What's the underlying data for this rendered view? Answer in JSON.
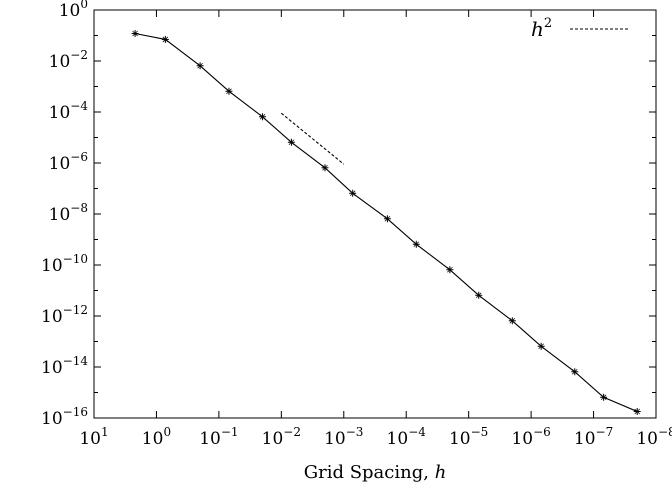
{
  "chart_data": {
    "type": "line",
    "xlabel": "Grid Spacing, h",
    "xlabel_parts": {
      "text": "Grid Spacing, ",
      "var": "h"
    },
    "x_scale": "log",
    "y_scale": "log",
    "x_reversed": true,
    "xlim": [
      10,
      1e-08
    ],
    "ylim": [
      1e-16,
      1
    ],
    "x_ticks": [
      {
        "value": 10,
        "base": "10",
        "exp": "1"
      },
      {
        "value": 1,
        "base": "10",
        "exp": "0"
      },
      {
        "value": 0.1,
        "base": "10",
        "exp": "−1"
      },
      {
        "value": 0.01,
        "base": "10",
        "exp": "−2"
      },
      {
        "value": 0.001,
        "base": "10",
        "exp": "−3"
      },
      {
        "value": 0.0001,
        "base": "10",
        "exp": "−4"
      },
      {
        "value": 1e-05,
        "base": "10",
        "exp": "−5"
      },
      {
        "value": 1e-06,
        "base": "10",
        "exp": "−6"
      },
      {
        "value": 1e-07,
        "base": "10",
        "exp": "−7"
      },
      {
        "value": 1e-08,
        "base": "10",
        "exp": "−8"
      }
    ],
    "y_ticks": [
      {
        "value": 1,
        "base": "10",
        "exp": "0"
      },
      {
        "value": 0.01,
        "base": "10",
        "exp": "−2"
      },
      {
        "value": 0.0001,
        "base": "10",
        "exp": "−4"
      },
      {
        "value": 1e-06,
        "base": "10",
        "exp": "−6"
      },
      {
        "value": 1e-08,
        "base": "10",
        "exp": "−8"
      },
      {
        "value": 1e-10,
        "base": "10",
        "exp": "−10"
      },
      {
        "value": 1e-12,
        "base": "10",
        "exp": "−12"
      },
      {
        "value": 1e-14,
        "base": "10",
        "exp": "−14"
      },
      {
        "value": 1e-16,
        "base": "10",
        "exp": "−16"
      }
    ],
    "series": [
      {
        "marker": "plus",
        "color": "#000000",
        "points": [
          {
            "x": 2.2,
            "y": 0.12
          },
          {
            "x": 0.72,
            "y": 0.07
          },
          {
            "x": 0.2,
            "y": 0.0065
          },
          {
            "x": 0.069,
            "y": 0.00065
          },
          {
            "x": 0.02,
            "y": 6.5e-05
          },
          {
            "x": 0.0069,
            "y": 6.5e-06
          },
          {
            "x": 0.002,
            "y": 6.5e-07
          },
          {
            "x": 0.00072,
            "y": 6.5e-08
          },
          {
            "x": 0.0002,
            "y": 6.5e-09
          },
          {
            "x": 6.9e-05,
            "y": 6.5e-10
          },
          {
            "x": 2e-05,
            "y": 6.5e-11
          },
          {
            "x": 6.9e-06,
            "y": 6.5e-12
          },
          {
            "x": 2e-06,
            "y": 6.5e-13
          },
          {
            "x": 6.9e-07,
            "y": 6.5e-14
          },
          {
            "x": 2e-07,
            "y": 6.5e-15
          },
          {
            "x": 6.9e-08,
            "y": 6.5e-16
          },
          {
            "x": 2e-08,
            "y": 1.8e-16
          }
        ]
      },
      {
        "name": "h²",
        "name_base": "h",
        "name_exp": "2",
        "dashed": true,
        "color": "#000000",
        "points": [
          {
            "x": 0.01,
            "y": 9e-05
          },
          {
            "x": 0.001,
            "y": 9e-07
          }
        ]
      }
    ],
    "legend_position": "top-right",
    "grid": false
  }
}
